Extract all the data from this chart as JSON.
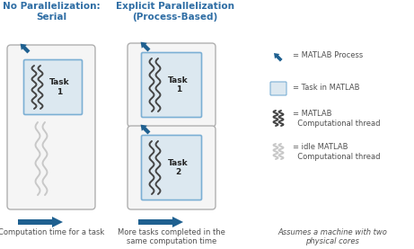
{
  "bg_color": "#ffffff",
  "title_color": "#2e6da4",
  "text_color": "#505050",
  "arrow_color": "#1f6090",
  "box_border_color": "#b0b0b0",
  "outer_box_color": "#f5f5f5",
  "task_box_color": "#dce8f0",
  "task_box_border": "#7bafd4",
  "idle_wave_color": "#c8c8c8",
  "active_wave_color": "#444444",
  "col1_title": "No Parallelization:\nSerial",
  "col2_title": "Explicit Parallelization\n(Process-Based)",
  "col1_caption": "Computation time for a task",
  "col2_caption": "More tasks completed in the\nsame computation time",
  "col3_caption": "Assumes a machine with two\nphysical cores",
  "legend_labels": [
    "= MATLAB Process",
    "= Task in MATLAB",
    "= MATLAB\n  Computational thread",
    "= idle MATLAB\n  Computational thread"
  ]
}
